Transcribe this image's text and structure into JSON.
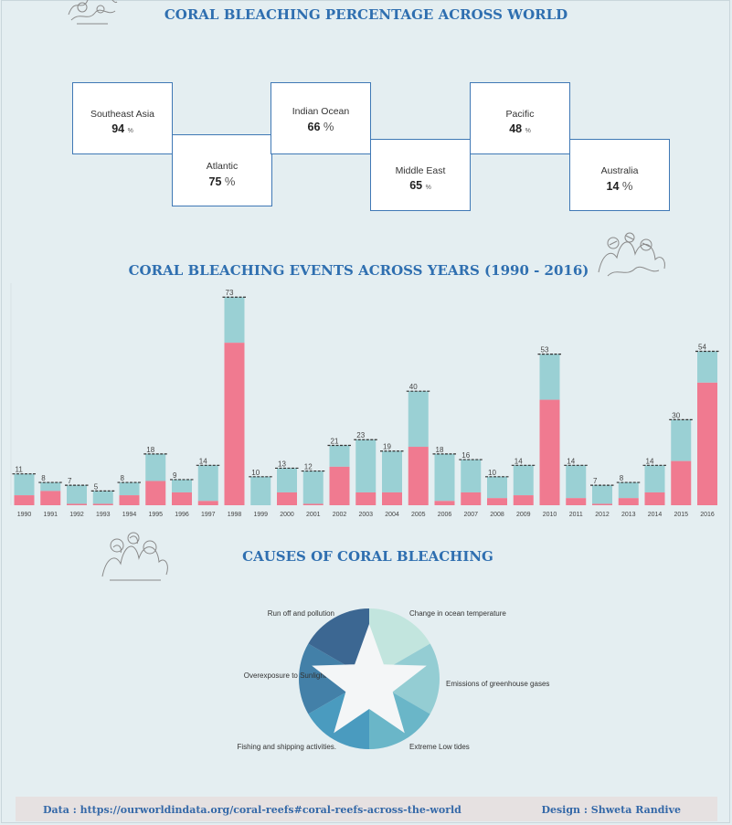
{
  "titles": {
    "regions": "CORAL BLEACHING PERCENTAGE ACROSS WORLD",
    "events": "CORAL BLEACHING EVENTS ACROSS YEARS (1990 - 2016)",
    "causes": "CAUSES OF CORAL BLEACHING"
  },
  "regions": [
    {
      "name": "Southeast Asia",
      "value": "94",
      "unit": "%"
    },
    {
      "name": "Atlantic",
      "value": "75",
      "unit": "%"
    },
    {
      "name": "Indian Ocean",
      "value": "66",
      "unit": "%"
    },
    {
      "name": "Middle East",
      "value": "65",
      "unit": "%"
    },
    {
      "name": "Pacific",
      "value": "48",
      "unit": "%"
    },
    {
      "name": "Australia",
      "value": "14",
      "unit": "%"
    }
  ],
  "colors": {
    "bar_top": "#9ad0d4",
    "bar_bottom": "#f07a90",
    "title": "#2f6fb0",
    "pie": [
      "#c2e5de",
      "#94cdd3",
      "#6ab6c8",
      "#4a9bbf",
      "#4380a8",
      "#3c6792"
    ]
  },
  "chart_data": [
    {
      "type": "bar",
      "stacked": true,
      "title": "CORAL BLEACHING EVENTS ACROSS YEARS (1990 - 2016)",
      "categories": [
        "1990",
        "1991",
        "1992",
        "1993",
        "1994",
        "1995",
        "1996",
        "1997",
        "1998",
        "1999",
        "2000",
        "2001",
        "2002",
        "2003",
        "2004",
        "2005",
        "2006",
        "2007",
        "2008",
        "2009",
        "2010",
        "2011",
        "2012",
        "2013",
        "2014",
        "2015",
        "2016"
      ],
      "totals": [
        11,
        8,
        7,
        5,
        8,
        18,
        9,
        14,
        73,
        10,
        13,
        12,
        21,
        23,
        19,
        40,
        18,
        16,
        10,
        14,
        53,
        14,
        7,
        8,
        14,
        30,
        54
      ],
      "series": [
        {
          "values": [
            3.5,
            5,
            0.5,
            0.5,
            3.5,
            8.5,
            4.5,
            1.5,
            57,
            0,
            4.5,
            0.5,
            13.5,
            4.5,
            4.5,
            20.5,
            1.5,
            4.5,
            2.5,
            3.5,
            37,
            2.5,
            0.5,
            2.5,
            4.5,
            15.5,
            43
          ]
        },
        {
          "values": [
            7.5,
            3,
            6.5,
            4.5,
            4.5,
            9.5,
            4.5,
            12.5,
            16,
            10,
            8.5,
            11.5,
            7.5,
            18.5,
            14.5,
            19.5,
            16.5,
            11.5,
            7.5,
            10.5,
            16,
            11.5,
            6.5,
            5.5,
            9.5,
            14.5,
            11
          ]
        }
      ],
      "ylim": [
        0,
        73
      ]
    },
    {
      "type": "pie",
      "title": "CAUSES OF CORAL BLEACHING",
      "labels": [
        "Change in ocean temperature",
        "Emissions of greenhouse gases",
        "Extreme Low tides",
        "Fishing and shipping activities.",
        "Overexposure to Sunlight",
        "Run off and pollution"
      ],
      "values": [
        1,
        1,
        1,
        1,
        1,
        1
      ]
    }
  ],
  "footer": {
    "source": "Data : https://ourworldindata.org/coral-reefs#coral-reefs-across-the-world",
    "design": "Design : Shweta Randive"
  }
}
